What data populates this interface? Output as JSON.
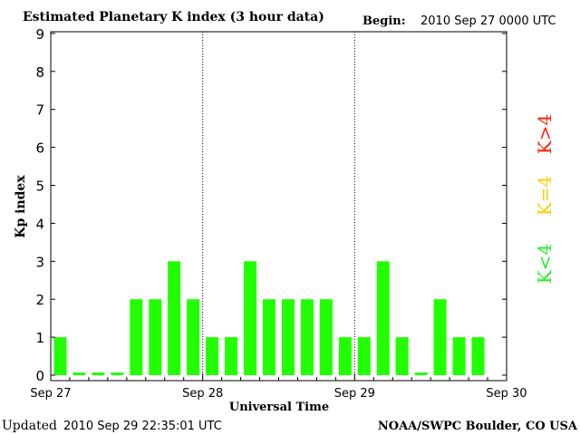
{
  "header": {
    "title": "Estimated Planetary K index (3 hour data)",
    "begin_label": "Begin:",
    "begin_value": "2010 Sep 27 0000 UTC"
  },
  "footer": {
    "updated_label": "Updated",
    "updated_value": "2010 Sep 29 22:35:01 UTC",
    "source": "NOAA/SWPC Boulder, CO USA"
  },
  "legend": [
    {
      "label": "K>4",
      "color": "#ff2200"
    },
    {
      "label": "K=4",
      "color": "#ffcc00"
    },
    {
      "label": "K<4",
      "color": "#22ee22"
    }
  ],
  "chart_data": {
    "type": "bar",
    "title": "Estimated Planetary K index (3 hour data)",
    "xlabel": "Universal Time",
    "ylabel": "Kp index",
    "ylim": [
      0,
      9
    ],
    "yticks": [
      0,
      1,
      2,
      3,
      4,
      5,
      6,
      7,
      8,
      9
    ],
    "day_labels": [
      "Sep 27",
      "Sep 28",
      "Sep 29",
      "Sep 30"
    ],
    "interval_hours": 3,
    "bar_color": "#22ff00",
    "values": [
      1,
      0,
      0,
      0,
      2,
      2,
      3,
      2,
      1,
      1,
      3,
      2,
      2,
      2,
      2,
      1,
      1,
      3,
      1,
      0,
      2,
      1,
      1
    ],
    "grid": false,
    "day_dividers": "dotted"
  }
}
